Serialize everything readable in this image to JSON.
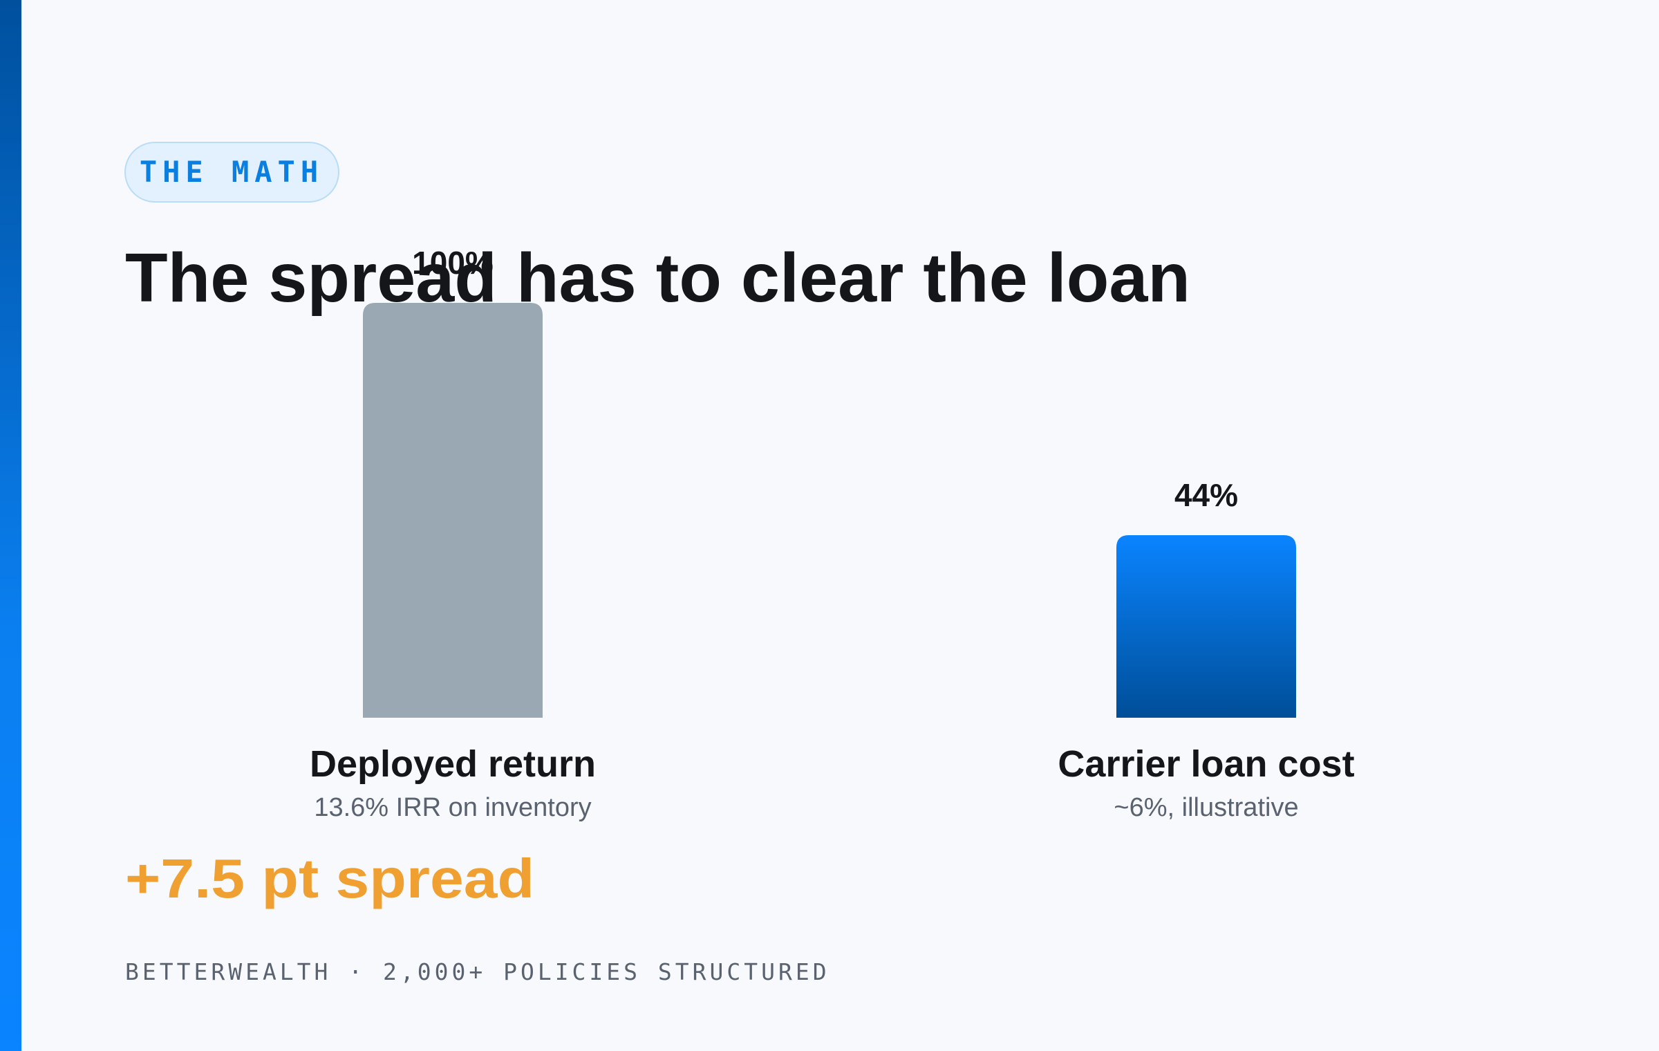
{
  "tag": "THE MATH",
  "title": "The spread has to clear the loan",
  "chart_data": {
    "type": "bar",
    "categories": [
      "Deployed return",
      "Carrier loan cost"
    ],
    "category_notes": [
      "13.6% IRR on inventory",
      "~6%, illustrative"
    ],
    "values": [
      100,
      44
    ],
    "value_labels": [
      "100%",
      "44%"
    ],
    "colors": [
      "#9aa8b4",
      "#0a84ff"
    ],
    "ylim": [
      0,
      100
    ]
  },
  "callout": "+7.5 pt spread",
  "footer": "BETTERWEALTH · 2,000+ POLICIES STRUCTURED"
}
